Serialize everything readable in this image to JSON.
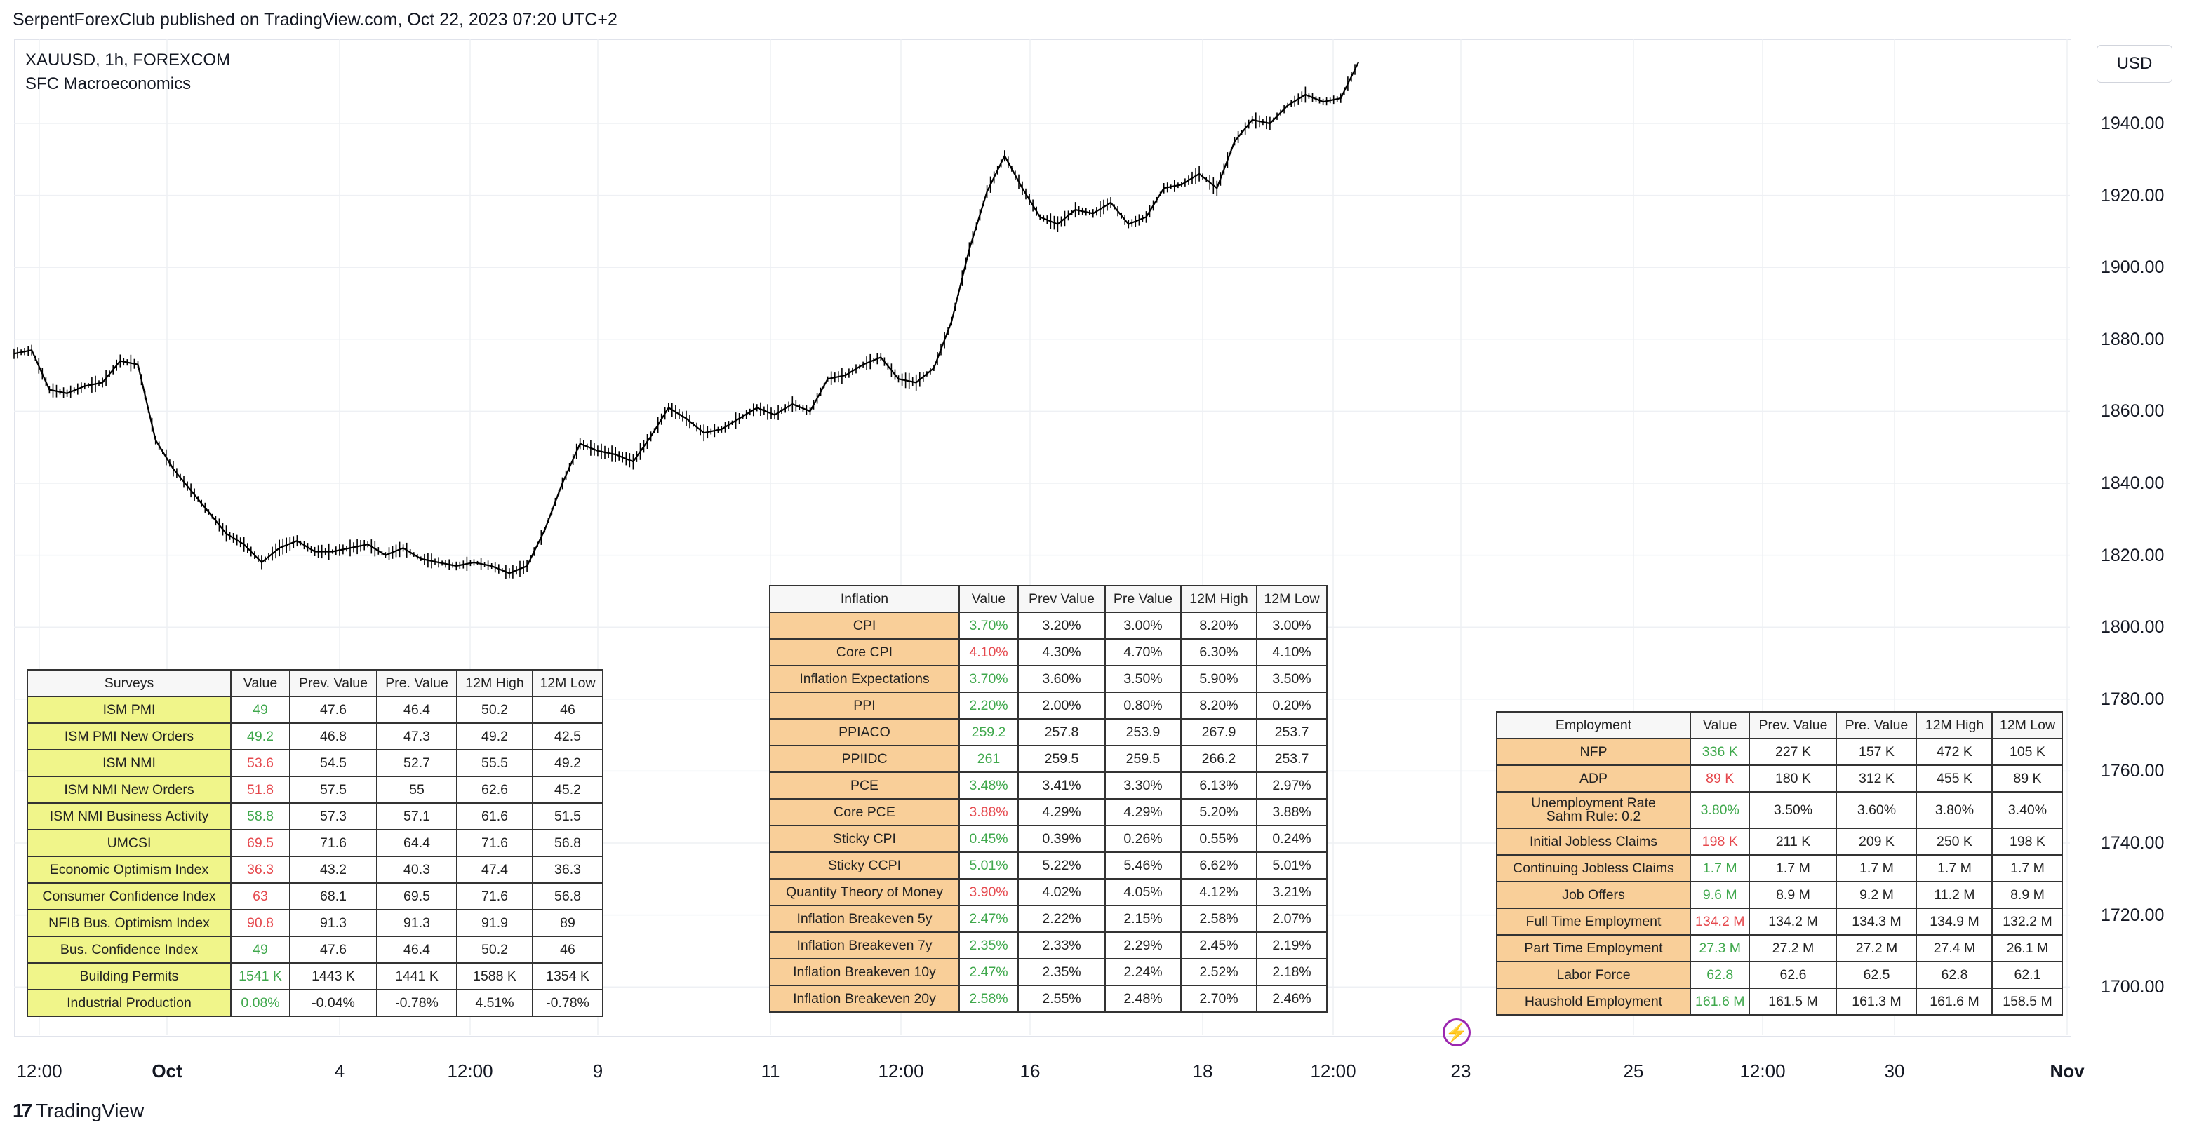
{
  "header": {
    "text": "SerpentForexClub published on TradingView.com, Oct 22, 2023 07:20 UTC+2"
  },
  "chart": {
    "symbol_line": "XAUUSD, 1h, FOREXCOM",
    "indicator_line": "SFC Macroeconomics",
    "currency": "USD",
    "y_ticks": [
      "1940.00",
      "1920.00",
      "1900.00",
      "1880.00",
      "1860.00",
      "1840.00",
      "1820.00",
      "1800.00",
      "1780.00",
      "1760.00",
      "1740.00",
      "1720.00",
      "1700.00"
    ],
    "x_ticks": [
      {
        "label": "12:00",
        "bold": false
      },
      {
        "label": "Oct",
        "bold": true
      },
      {
        "label": "4",
        "bold": false
      },
      {
        "label": "12:00",
        "bold": false
      },
      {
        "label": "9",
        "bold": false
      },
      {
        "label": "11",
        "bold": false
      },
      {
        "label": "12:00",
        "bold": false
      },
      {
        "label": "16",
        "bold": false
      },
      {
        "label": "18",
        "bold": false
      },
      {
        "label": "12:00",
        "bold": false
      },
      {
        "label": "23",
        "bold": false
      },
      {
        "label": "25",
        "bold": false
      },
      {
        "label": "12:00",
        "bold": false
      },
      {
        "label": "30",
        "bold": false
      },
      {
        "label": "Nov",
        "bold": true
      }
    ],
    "line_color": "#000000",
    "price_path": [
      1876,
      1877,
      1866,
      1865,
      1867,
      1868,
      1874,
      1873,
      1852,
      1844,
      1838,
      1832,
      1826,
      1823,
      1818,
      1822,
      1824,
      1821,
      1821,
      1822,
      1823,
      1820,
      1822,
      1819,
      1818,
      1817,
      1818,
      1817,
      1815,
      1817,
      1827,
      1840,
      1851,
      1849,
      1848,
      1846,
      1853,
      1861,
      1858,
      1854,
      1855,
      1858,
      1861,
      1859,
      1862,
      1860,
      1869,
      1870,
      1873,
      1875,
      1869,
      1868,
      1872,
      1885,
      1905,
      1921,
      1931,
      1922,
      1914,
      1912,
      1916,
      1915,
      1918,
      1912,
      1914,
      1922,
      1923,
      1926,
      1922,
      1935,
      1941,
      1940,
      1945,
      1948,
      1946,
      1947,
      1957
    ],
    "trend_color": "#000000"
  },
  "surveys": {
    "headers": [
      "Surveys",
      "Value",
      "Prev. Value",
      "Pre. Value",
      "12M High",
      "12M Low"
    ],
    "name_bg": "#f0f58a",
    "rows": [
      {
        "name": "ISM PMI",
        "value": "49",
        "sign": "pos",
        "prev": "47.6",
        "pre": "46.4",
        "high": "50.2",
        "low": "46"
      },
      {
        "name": "ISM PMI New Orders",
        "value": "49.2",
        "sign": "pos",
        "prev": "46.8",
        "pre": "47.3",
        "high": "49.2",
        "low": "42.5"
      },
      {
        "name": "ISM NMI",
        "value": "53.6",
        "sign": "neg",
        "prev": "54.5",
        "pre": "52.7",
        "high": "55.5",
        "low": "49.2"
      },
      {
        "name": "ISM NMI New Orders",
        "value": "51.8",
        "sign": "neg",
        "prev": "57.5",
        "pre": "55",
        "high": "62.6",
        "low": "45.2"
      },
      {
        "name": "ISM NMI Business Activity",
        "value": "58.8",
        "sign": "pos",
        "prev": "57.3",
        "pre": "57.1",
        "high": "61.6",
        "low": "51.5"
      },
      {
        "name": "UMCSI",
        "value": "69.5",
        "sign": "neg",
        "prev": "71.6",
        "pre": "64.4",
        "high": "71.6",
        "low": "56.8"
      },
      {
        "name": "Economic Optimism Index",
        "value": "36.3",
        "sign": "neg",
        "prev": "43.2",
        "pre": "40.3",
        "high": "47.4",
        "low": "36.3"
      },
      {
        "name": "Consumer Confidence Index",
        "value": "63",
        "sign": "neg",
        "prev": "68.1",
        "pre": "69.5",
        "high": "71.6",
        "low": "56.8"
      },
      {
        "name": "NFIB Bus. Optimism Index",
        "value": "90.8",
        "sign": "neg",
        "prev": "91.3",
        "pre": "91.3",
        "high": "91.9",
        "low": "89"
      },
      {
        "name": "Bus. Confidence Index",
        "value": "49",
        "sign": "pos",
        "prev": "47.6",
        "pre": "46.4",
        "high": "50.2",
        "low": "46"
      },
      {
        "name": "Building Permits",
        "value": "1541 K",
        "sign": "pos",
        "prev": "1443 K",
        "pre": "1441 K",
        "high": "1588 K",
        "low": "1354 K"
      },
      {
        "name": "Industrial Production",
        "value": "0.08%",
        "sign": "pos",
        "prev": "-0.04%",
        "pre": "-0.78%",
        "high": "4.51%",
        "low": "-0.78%"
      }
    ]
  },
  "inflation": {
    "headers": [
      "Inflation",
      "Value",
      "Prev Value",
      "Pre Value",
      "12M High",
      "12M Low"
    ],
    "name_bg": "#f9cf99",
    "rows": [
      {
        "name": "CPI",
        "value": "3.70%",
        "sign": "pos",
        "prev": "3.20%",
        "pre": "3.00%",
        "high": "8.20%",
        "low": "3.00%"
      },
      {
        "name": "Core CPI",
        "value": "4.10%",
        "sign": "neg",
        "prev": "4.30%",
        "pre": "4.70%",
        "high": "6.30%",
        "low": "4.10%"
      },
      {
        "name": "Inflation Expectations",
        "value": "3.70%",
        "sign": "pos",
        "prev": "3.60%",
        "pre": "3.50%",
        "high": "5.90%",
        "low": "3.50%"
      },
      {
        "name": "PPI",
        "value": "2.20%",
        "sign": "pos",
        "prev": "2.00%",
        "pre": "0.80%",
        "high": "8.20%",
        "low": "0.20%"
      },
      {
        "name": "PPIACO",
        "value": "259.2",
        "sign": "pos",
        "prev": "257.8",
        "pre": "253.9",
        "high": "267.9",
        "low": "253.7"
      },
      {
        "name": "PPIIDC",
        "value": "261",
        "sign": "pos",
        "prev": "259.5",
        "pre": "259.5",
        "high": "266.2",
        "low": "253.7"
      },
      {
        "name": "PCE",
        "value": "3.48%",
        "sign": "pos",
        "prev": "3.41%",
        "pre": "3.30%",
        "high": "6.13%",
        "low": "2.97%"
      },
      {
        "name": "Core PCE",
        "value": "3.88%",
        "sign": "neg",
        "prev": "4.29%",
        "pre": "4.29%",
        "high": "5.20%",
        "low": "3.88%"
      },
      {
        "name": "Sticky CPI",
        "value": "0.45%",
        "sign": "pos",
        "prev": "0.39%",
        "pre": "0.26%",
        "high": "0.55%",
        "low": "0.24%"
      },
      {
        "name": "Sticky CCPI",
        "value": "5.01%",
        "sign": "pos",
        "prev": "5.22%",
        "pre": "5.46%",
        "high": "6.62%",
        "low": "5.01%"
      },
      {
        "name": "Quantity Theory of Money",
        "value": "3.90%",
        "sign": "neg",
        "prev": "4.02%",
        "pre": "4.05%",
        "high": "4.12%",
        "low": "3.21%"
      },
      {
        "name": "Inflation Breakeven 5y",
        "value": "2.47%",
        "sign": "pos",
        "prev": "2.22%",
        "pre": "2.15%",
        "high": "2.58%",
        "low": "2.07%"
      },
      {
        "name": "Inflation Breakeven 7y",
        "value": "2.35%",
        "sign": "pos",
        "prev": "2.33%",
        "pre": "2.29%",
        "high": "2.45%",
        "low": "2.19%"
      },
      {
        "name": "Inflation Breakeven 10y",
        "value": "2.47%",
        "sign": "pos",
        "prev": "2.35%",
        "pre": "2.24%",
        "high": "2.52%",
        "low": "2.18%"
      },
      {
        "name": "Inflation Breakeven 20y",
        "value": "2.58%",
        "sign": "pos",
        "prev": "2.55%",
        "pre": "2.48%",
        "high": "2.70%",
        "low": "2.46%"
      }
    ]
  },
  "employment": {
    "headers": [
      "Employment",
      "Value",
      "Prev. Value",
      "Pre. Value",
      "12M High",
      "12M Low"
    ],
    "name_bg": "#f9cf99",
    "rows": [
      {
        "name": "NFP",
        "value": "336 K",
        "sign": "pos",
        "prev": "227 K",
        "pre": "157 K",
        "high": "472 K",
        "low": "105 K"
      },
      {
        "name": "ADP",
        "value": "89 K",
        "sign": "neg",
        "prev": "180 K",
        "pre": "312 K",
        "high": "455 K",
        "low": "89 K"
      },
      {
        "name": "Unemployment Rate\nSahm Rule: 0.2",
        "value": "3.80%",
        "sign": "pos",
        "prev": "3.50%",
        "pre": "3.60%",
        "high": "3.80%",
        "low": "3.40%"
      },
      {
        "name": "Initial Jobless Claims",
        "value": "198 K",
        "sign": "neg",
        "prev": "211 K",
        "pre": "209 K",
        "high": "250 K",
        "low": "198 K"
      },
      {
        "name": "Continuing Jobless Claims",
        "value": "1.7 M",
        "sign": "pos",
        "prev": "1.7 M",
        "pre": "1.7 M",
        "high": "1.7 M",
        "low": "1.7 M"
      },
      {
        "name": "Job Offers",
        "value": "9.6 M",
        "sign": "pos",
        "prev": "8.9 M",
        "pre": "9.2 M",
        "high": "11.2 M",
        "low": "8.9 M"
      },
      {
        "name": "Full Time Employment",
        "value": "134.2 M",
        "sign": "neg",
        "prev": "134.2 M",
        "pre": "134.3 M",
        "high": "134.9 M",
        "low": "132.2 M"
      },
      {
        "name": "Part Time Employment",
        "value": "27.3 M",
        "sign": "pos",
        "prev": "27.2 M",
        "pre": "27.2 M",
        "high": "27.4 M",
        "low": "26.1 M"
      },
      {
        "name": "Labor Force",
        "value": "62.8",
        "sign": "pos",
        "prev": "62.6",
        "pre": "62.5",
        "high": "62.8",
        "low": "62.1"
      },
      {
        "name": "Haushold Employment",
        "value": "161.6 M",
        "sign": "pos",
        "prev": "161.5 M",
        "pre": "161.3 M",
        "high": "161.6 M",
        "low": "158.5 M"
      }
    ]
  },
  "footer": {
    "brand": "TradingView",
    "logo_mark": "17"
  },
  "bolt_icon": "lightning-icon"
}
